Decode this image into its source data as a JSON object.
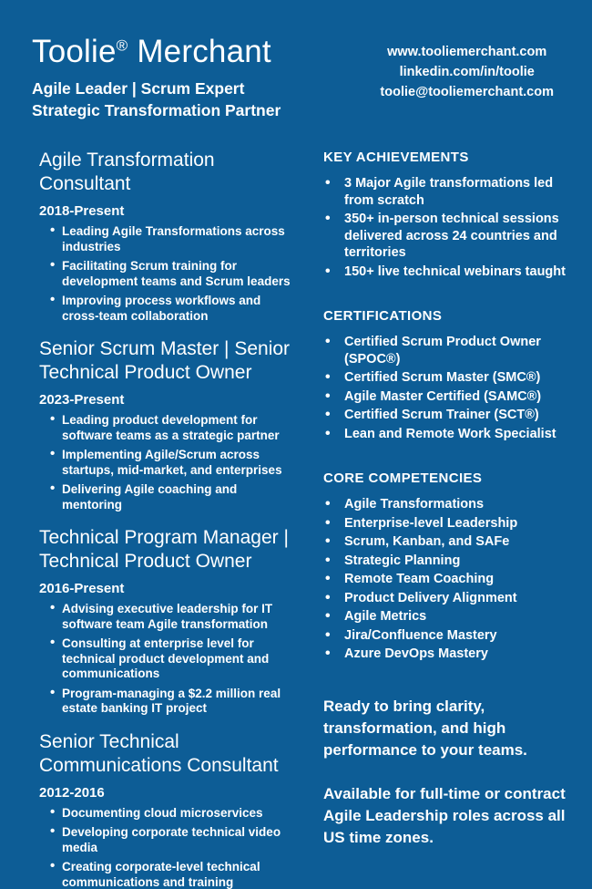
{
  "colors": {
    "background": "#0d5d96",
    "text": "#ffffff"
  },
  "header": {
    "name": "Toolie",
    "name_mark": "®",
    "name_rest": "Merchant",
    "tagline1": "Agile Leader | Scrum Expert",
    "tagline2": "Strategic Transformation Partner",
    "website": "www.tooliemerchant.com",
    "linkedin": "linkedin.com/in/toolie",
    "email": "toolie@tooliemerchant.com"
  },
  "experience": [
    {
      "title": "Agile Transformation Consultant",
      "dates": "2018-Present",
      "bullets": [
        "Leading Agile Transformations across industries",
        "Facilitating Scrum training for development teams and Scrum leaders",
        "Improving process workflows and cross-team collaboration"
      ]
    },
    {
      "title": "Senior Scrum Master | Senior Technical Product Owner",
      "dates": "2023-Present",
      "bullets": [
        "Leading product development for software teams as a strategic partner",
        "Implementing Agile/Scrum across startups, mid-market, and enterprises",
        "Delivering Agile coaching and mentoring"
      ]
    },
    {
      "title": "Technical Program Manager | Technical Product Owner",
      "dates": "2016-Present",
      "bullets": [
        "Advising executive leadership for IT software team Agile transformation",
        "Consulting at enterprise level for technical product development and communications",
        "Program-managing a $2.2 million real estate banking IT project"
      ]
    },
    {
      "title": "Senior Technical Communications Consultant",
      "dates": "2012-2016",
      "bullets": [
        "Documenting cloud microservices",
        "Developing corporate technical video media",
        "Creating corporate-level technical communications and training"
      ]
    }
  ],
  "sidebar": [
    {
      "heading": "KEY ACHIEVEMENTS",
      "bullets": [
        "3 Major Agile transformations led from scratch",
        "350+ in-person technical sessions delivered across 24 countries and territories",
        "150+ live technical webinars taught"
      ]
    },
    {
      "heading": "CERTIFICATIONS",
      "bullets": [
        "Certified Scrum Product Owner (SPOC®)",
        "Certified Scrum Master (SMC®)",
        "Agile Master Certified (SAMC®)",
        "Certified Scrum Trainer (SCT®)",
        "Lean and Remote Work Specialist"
      ]
    },
    {
      "heading": "CORE COMPETENCIES",
      "bullets": [
        "Agile Transformations",
        "Enterprise-level Leadership",
        "Scrum, Kanban, and SAFe",
        "Strategic Planning",
        "Remote Team Coaching",
        "Product Delivery Alignment",
        "Agile Metrics",
        "Jira/Confluence Mastery",
        "Azure DevOps Mastery"
      ]
    }
  ],
  "closing": {
    "p1": "Ready to bring clarity, transformation, and high performance to your teams.",
    "p2": "Available for full-time or contract Agile Leadership roles across all US time zones."
  }
}
